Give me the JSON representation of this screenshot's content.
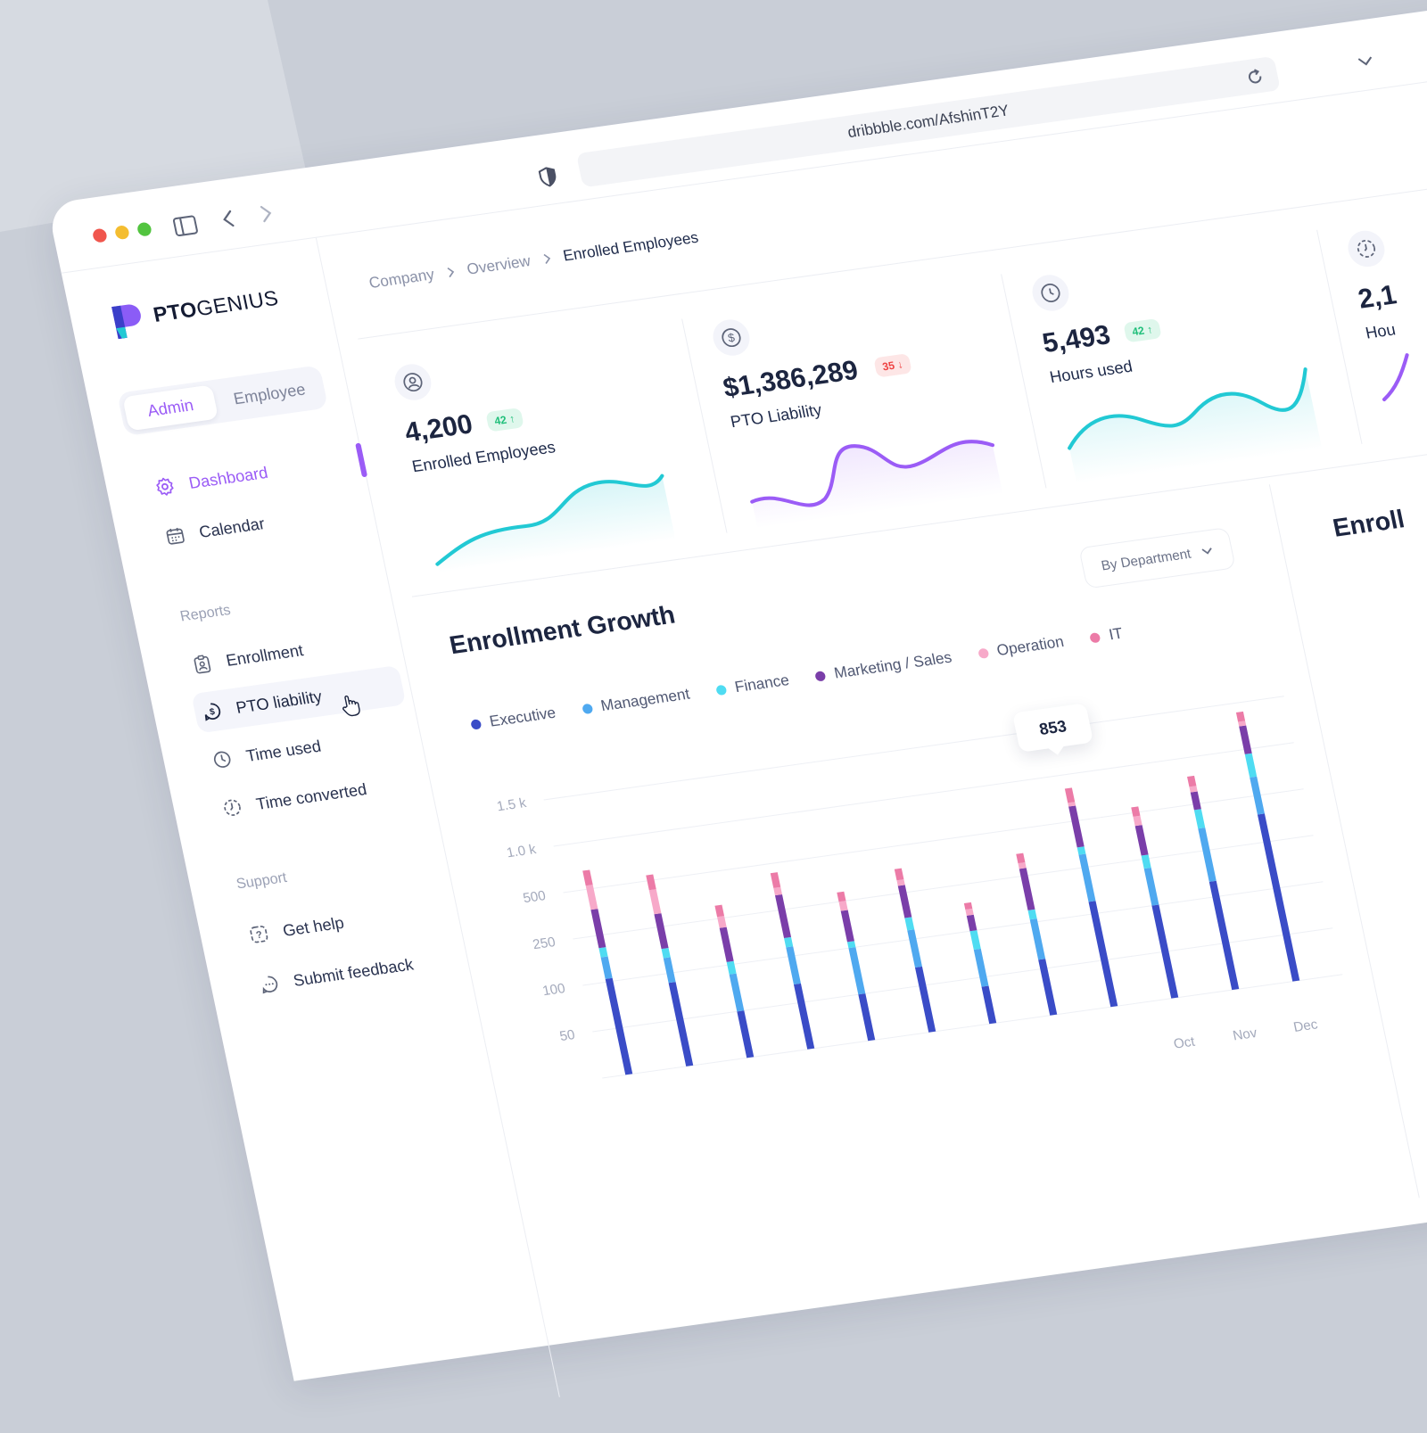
{
  "browser": {
    "url": "dribbble.com/AfshinT2Y",
    "icons": [
      "sidebar-toggle-icon",
      "back-icon",
      "forward-icon",
      "shield-icon",
      "reload-icon",
      "chevron-down-icon"
    ]
  },
  "colors": {
    "accent": "#9b5cf6",
    "teal": "#22c9d4",
    "text": "#1e2a4a",
    "muted": "#8a91a8",
    "up": "#1fbf7a",
    "down": "#ef4444"
  },
  "logo": {
    "bold": "PTO",
    "light": "GENIUS"
  },
  "role_toggle": {
    "active": "Admin",
    "other": "Employee"
  },
  "sidebar": {
    "main": [
      {
        "label": "Dashboard",
        "icon": "gear-icon",
        "active": true
      },
      {
        "label": "Calendar",
        "icon": "calendar-icon"
      }
    ],
    "reports_label": "Reports",
    "reports": [
      {
        "label": "Enrollment",
        "icon": "id-badge-icon"
      },
      {
        "label": "PTO liability",
        "icon": "dollar-icon",
        "hover": true
      },
      {
        "label": "Time used",
        "icon": "clock-icon"
      },
      {
        "label": "Time converted",
        "icon": "clock-dashed-icon"
      }
    ],
    "support_label": "Support",
    "support": [
      {
        "label": "Get help",
        "icon": "help-icon"
      },
      {
        "label": "Submit feedback",
        "icon": "chat-icon"
      }
    ]
  },
  "breadcrumb": [
    "Company",
    "Overview",
    "Enrolled Employees"
  ],
  "cards": [
    {
      "value": "4,200",
      "label": "Enrolled Employees",
      "badge": "42",
      "trend": "up",
      "icon": "user-icon"
    },
    {
      "value": "$1,386,289",
      "label": "PTO Liability",
      "badge": "35",
      "trend": "down",
      "icon": "dollar-icon"
    },
    {
      "value": "5,493",
      "label": "Hours used",
      "badge": "42",
      "trend": "up",
      "icon": "clock-icon"
    },
    {
      "value": "2,1",
      "label": "Hou",
      "icon": "clock-dashed-icon"
    }
  ],
  "right_panel": {
    "title": "Enroll"
  },
  "chart_data": {
    "type": "bar",
    "stacked": true,
    "title": "Enrollment Growth",
    "filter": "By Department",
    "categories": [
      "",
      "",
      "",
      "",
      "",
      "",
      "",
      "",
      "",
      "Oct",
      "Nov",
      "Dec"
    ],
    "y_ticks": [
      50,
      100,
      250,
      500,
      1000,
      1500
    ],
    "y_tick_labels": [
      "50",
      "100",
      "250",
      "500",
      "1.0 k",
      "1.5 k"
    ],
    "grid": true,
    "legend_position": "top-left",
    "tooltip": {
      "category_index": 8,
      "value": "853"
    },
    "series": [
      {
        "name": "Executive",
        "color": "#3a4cc7",
        "values": [
          110,
          90,
          50,
          70,
          50,
          70,
          40,
          60,
          140,
          100,
          150,
          400
        ]
      },
      {
        "name": "Management",
        "color": "#4fa9f0",
        "values": [
          70,
          60,
          40,
          60,
          50,
          60,
          40,
          50,
          180,
          120,
          220,
          300
        ]
      },
      {
        "name": "Finance",
        "color": "#4fdcf2",
        "values": [
          30,
          30,
          20,
          30,
          20,
          40,
          20,
          30,
          40,
          50,
          100,
          250
        ]
      },
      {
        "name": "Marketing / Sales",
        "color": "#7a3ea9",
        "values": [
          180,
          140,
          110,
          170,
          100,
          120,
          50,
          150,
          300,
          160,
          160,
          300
        ]
      },
      {
        "name": "Operation",
        "color": "#f7a9c9",
        "values": [
          150,
          130,
          40,
          40,
          30,
          30,
          20,
          30,
          40,
          50,
          60,
          50
        ]
      },
      {
        "name": "IT",
        "color": "#ec7ba7",
        "values": [
          160,
          110,
          60,
          80,
          50,
          60,
          20,
          50,
          153,
          80,
          110,
          100
        ]
      }
    ]
  }
}
